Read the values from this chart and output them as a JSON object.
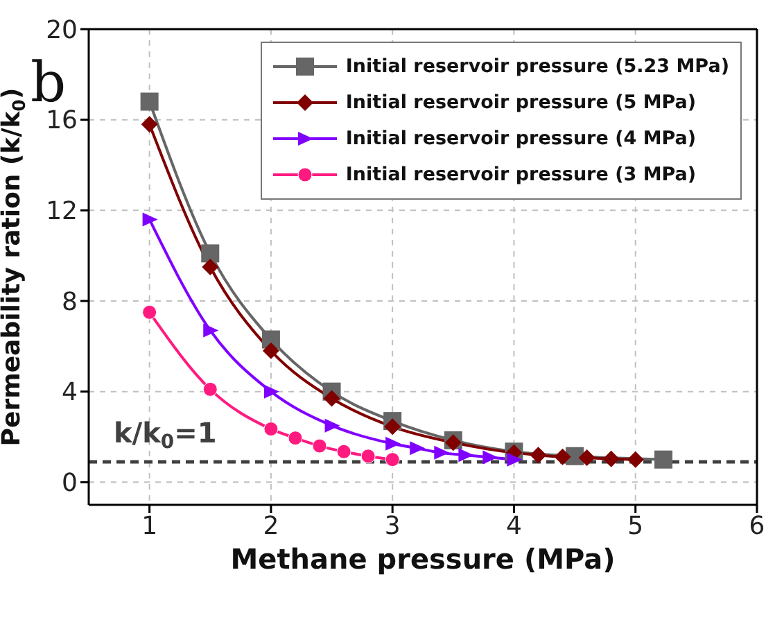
{
  "chart_data": {
    "type": "line",
    "xlabel": "Methane pressure (MPa)",
    "ylabel": "Permeability ration (k/k$_{0}$)",
    "annotations": [
      "b"
    ],
    "xlim": [
      0.5,
      6
    ],
    "xticks": [
      1,
      2,
      3,
      4,
      5,
      6
    ],
    "ylim": [
      -1,
      20
    ],
    "yticks": [
      0,
      4,
      8,
      12,
      16,
      20
    ],
    "grid": true,
    "legend": "top right",
    "ref_lines": [
      {
        "axis": "y",
        "value": 0.9,
        "label": "k/k$_{0}$=1",
        "color": "#404040",
        "line_style": "dashed"
      }
    ],
    "series": [
      {
        "name": "Initial reservoir pressure (5.23 MPa)",
        "color": "#666666",
        "marker": "square",
        "x": [
          1,
          1.5,
          2,
          2.5,
          3,
          3.5,
          4,
          4.5,
          5.23
        ],
        "values": [
          16.8,
          10.1,
          6.3,
          4.0,
          2.7,
          1.85,
          1.35,
          1.15,
          1.0
        ]
      },
      {
        "name": "Initial reservoir pressure (5 MPa)",
        "color": "#800000",
        "marker": "diamond",
        "x": [
          1,
          1.5,
          2,
          2.5,
          3,
          3.5,
          4,
          4.2,
          4.4,
          4.6,
          4.8,
          5
        ],
        "values": [
          15.8,
          9.5,
          5.8,
          3.7,
          2.45,
          1.75,
          1.3,
          1.2,
          1.12,
          1.08,
          1.03,
          1.0
        ]
      },
      {
        "name": "Initial reservoir pressure (4 MPa)",
        "color": "#8000ff",
        "marker": "triangle",
        "x": [
          1,
          1.5,
          2,
          2.5,
          3,
          3.2,
          3.4,
          3.6,
          3.8,
          4
        ],
        "values": [
          11.6,
          6.7,
          4.0,
          2.5,
          1.7,
          1.5,
          1.3,
          1.2,
          1.1,
          1.0
        ]
      },
      {
        "name": "Initial reservoir pressure (3 MPa)",
        "color": "#ff1a80",
        "marker": "circle",
        "x": [
          1,
          1.5,
          2,
          2.2,
          2.4,
          2.6,
          2.8,
          3
        ],
        "values": [
          7.5,
          4.1,
          2.35,
          1.95,
          1.6,
          1.35,
          1.15,
          1.0
        ]
      }
    ]
  }
}
